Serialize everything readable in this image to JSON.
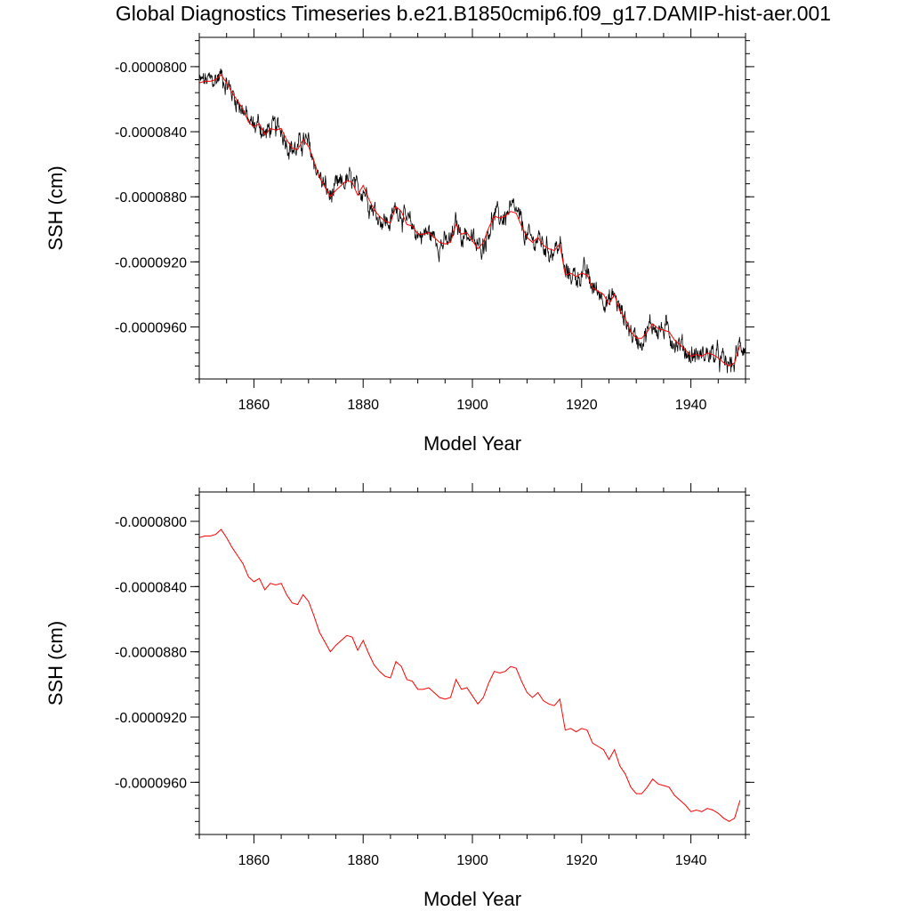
{
  "title": "Global Diagnostics Timeseries b.e21.B1850cmip6.f09_g17.DAMIP-hist-aer.001",
  "colors": {
    "monthly": "#000000",
    "annual": "#ff0000",
    "background": "#ffffff"
  },
  "chart_data": [
    {
      "type": "line",
      "title": "",
      "xlabel": "Model Year",
      "ylabel": "SSH (cm)",
      "xlim": [
        1850,
        1950
      ],
      "ylim": [
        -9.92e-05,
        -7.82e-05
      ],
      "xticks": [
        1860,
        1880,
        1900,
        1920,
        1940
      ],
      "xtick_labels": [
        "1860",
        "1880",
        "1900",
        "1920",
        "1940"
      ],
      "yticks": [
        -8e-05,
        -8.4e-05,
        -8.8e-05,
        -9.2e-05,
        -9.6e-05
      ],
      "ytick_labels": [
        "-0.0000800",
        "-0.0000840",
        "-0.0000880",
        "-0.0000920",
        "-0.0000960"
      ],
      "grid": false,
      "series": [
        {
          "color": "#000000",
          "resolution": "monthly",
          "x_start": 1850,
          "x_end": 1949.9
        },
        {
          "color": "#ff0000",
          "resolution": "annual",
          "x_start": 1850,
          "x_end": 1949
        }
      ]
    },
    {
      "type": "line",
      "title": "",
      "xlabel": "Model Year",
      "ylabel": "SSH (cm)",
      "xlim": [
        1850,
        1950
      ],
      "ylim": [
        -9.92e-05,
        -7.82e-05
      ],
      "xticks": [
        1860,
        1880,
        1900,
        1920,
        1940
      ],
      "xtick_labels": [
        "1860",
        "1880",
        "1900",
        "1920",
        "1940"
      ],
      "yticks": [
        -8e-05,
        -8.4e-05,
        -8.8e-05,
        -9.2e-05,
        -9.6e-05
      ],
      "ytick_labels": [
        "-0.0000800",
        "-0.0000840",
        "-0.0000880",
        "-0.0000920",
        "-0.0000960"
      ],
      "grid": false,
      "series": [
        {
          "color": "#ff0000",
          "resolution": "annual",
          "x_start": 1850,
          "x_end": 1949
        }
      ]
    }
  ],
  "annual_ssh": [
    -8.1e-05,
    -8.09e-05,
    -8.09e-05,
    -8.08e-05,
    -8.05e-05,
    -8.1e-05,
    -8.16e-05,
    -8.21e-05,
    -8.26e-05,
    -8.34e-05,
    -8.37e-05,
    -8.35e-05,
    -8.42e-05,
    -8.38e-05,
    -8.39e-05,
    -8.38e-05,
    -8.45e-05,
    -8.5e-05,
    -8.51e-05,
    -8.45e-05,
    -8.49e-05,
    -8.58e-05,
    -8.68e-05,
    -8.74e-05,
    -8.8e-05,
    -8.76e-05,
    -8.73e-05,
    -8.7e-05,
    -8.71e-05,
    -8.79e-05,
    -8.73e-05,
    -8.81e-05,
    -8.88e-05,
    -8.92e-05,
    -8.95e-05,
    -8.96e-05,
    -8.86e-05,
    -8.89e-05,
    -8.97e-05,
    -8.98e-05,
    -9.03e-05,
    -9.03e-05,
    -9.02e-05,
    -9.05e-05,
    -9.08e-05,
    -9.09e-05,
    -9.08e-05,
    -8.97e-05,
    -9.03e-05,
    -9.02e-05,
    -9.07e-05,
    -9.12e-05,
    -9.08e-05,
    -8.99e-05,
    -8.92e-05,
    -8.93e-05,
    -8.92e-05,
    -8.89e-05,
    -8.9e-05,
    -8.98e-05,
    -9.05e-05,
    -9.08e-05,
    -9.05e-05,
    -9.1e-05,
    -9.12e-05,
    -9.13e-05,
    -9.09e-05,
    -9.28e-05,
    -9.27e-05,
    -9.29e-05,
    -9.27e-05,
    -9.28e-05,
    -9.36e-05,
    -9.38e-05,
    -9.4e-05,
    -9.46e-05,
    -9.4e-05,
    -9.5e-05,
    -9.55e-05,
    -9.63e-05,
    -9.67e-05,
    -9.67e-05,
    -9.63e-05,
    -9.58e-05,
    -9.61e-05,
    -9.62e-05,
    -9.63e-05,
    -9.68e-05,
    -9.71e-05,
    -9.74e-05,
    -9.78e-05,
    -9.77e-05,
    -9.78e-05,
    -9.76e-05,
    -9.77e-05,
    -9.79e-05,
    -9.82e-05,
    -9.84e-05,
    -9.82e-05,
    -9.71e-05
  ]
}
